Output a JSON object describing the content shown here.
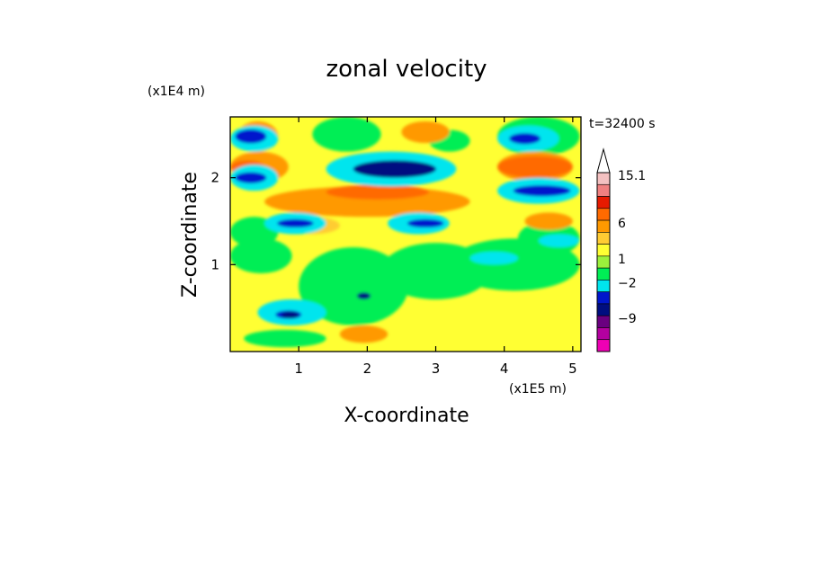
{
  "chart_data": {
    "type": "heatmap",
    "title": "zonal velocity",
    "xlabel": "X-coordinate",
    "ylabel": "Z-coordinate",
    "x_multiplier": "(x1E5 m)",
    "y_multiplier": "(x1E4 m)",
    "time_label": "t=32400 s",
    "xlim": [
      0,
      5.12
    ],
    "ylim": [
      0,
      2.7
    ],
    "x_ticks": [
      "1",
      "2",
      "3",
      "4",
      "5"
    ],
    "y_ticks": [
      "1",
      "2"
    ],
    "colorbar": {
      "labels": [
        "15.1",
        "6",
        "1",
        "−2",
        "−9"
      ],
      "levels_top_to_bottom": [
        {
          "color": "#f4c1c1"
        },
        {
          "color": "#f08080"
        },
        {
          "color": "#e61a00"
        },
        {
          "color": "#ff6a00"
        },
        {
          "color": "#ff9900"
        },
        {
          "color": "#ffcc33"
        },
        {
          "color": "#ffff33"
        },
        {
          "color": "#9cf03c"
        },
        {
          "color": "#00ee55"
        },
        {
          "color": "#00e5ee"
        },
        {
          "color": "#0016cc"
        },
        {
          "color": "#000e80"
        },
        {
          "color": "#6a0080"
        },
        {
          "color": "#b400a0"
        },
        {
          "color": "#ee00b4"
        }
      ]
    },
    "features": [
      {
        "z_band": [
          2.35,
          2.6
        ],
        "x_range": [
          0,
          0.6
        ],
        "sign": "negative"
      },
      {
        "z_band": [
          2.0,
          2.25
        ],
        "x_range": [
          0,
          0.8
        ],
        "sign": "positive"
      },
      {
        "z_band": [
          1.9,
          2.1
        ],
        "x_range": [
          0,
          0.6
        ],
        "sign": "negative"
      },
      {
        "z_band": [
          1.95,
          2.25
        ],
        "x_range": [
          1.6,
          3.2
        ],
        "sign": "negative"
      },
      {
        "z_band": [
          1.6,
          1.85
        ],
        "x_range": [
          0.6,
          3.6
        ],
        "sign": "positive"
      },
      {
        "z_band": [
          1.4,
          1.55
        ],
        "x_range": [
          0.6,
          1.3
        ],
        "sign": "negative"
      },
      {
        "z_band": [
          1.4,
          1.55
        ],
        "x_range": [
          2.5,
          3.2
        ],
        "sign": "negative"
      },
      {
        "z_band": [
          1.75,
          1.95
        ],
        "x_range": [
          4.0,
          5.1
        ],
        "sign": "negative"
      },
      {
        "z_band": [
          2.35,
          2.55
        ],
        "x_range": [
          4.0,
          4.6
        ],
        "sign": "negative"
      },
      {
        "z_band": [
          0.35,
          0.5
        ],
        "x_range": [
          0.6,
          1.1
        ],
        "sign": "negative"
      }
    ]
  }
}
